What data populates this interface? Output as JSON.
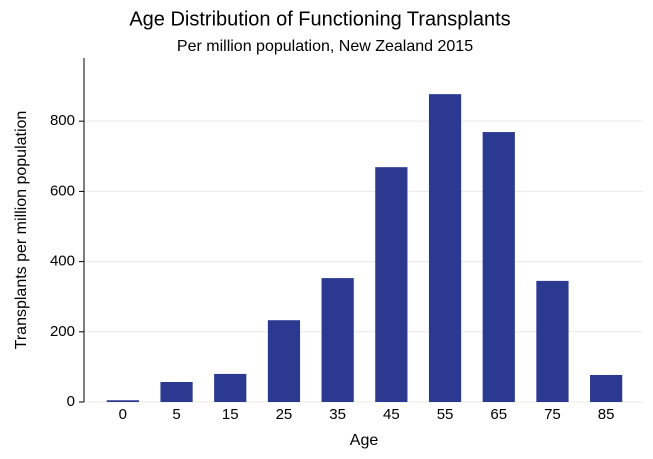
{
  "chart_data": {
    "type": "bar",
    "title": "Age Distribution of Functioning Transplants",
    "subtitle": "Per million population, New Zealand 2015",
    "x_label": "Age",
    "y_label": "Transplants per million population",
    "categories": [
      "0",
      "5",
      "15",
      "25",
      "35",
      "45",
      "55",
      "65",
      "75",
      "85"
    ],
    "values": [
      5,
      57,
      80,
      233,
      353,
      669,
      877,
      769,
      345,
      77
    ],
    "color": "#2b3990",
    "ylim": [
      0,
      980
    ],
    "yticks": [
      0,
      200,
      400,
      600,
      800
    ],
    "grid": true
  }
}
